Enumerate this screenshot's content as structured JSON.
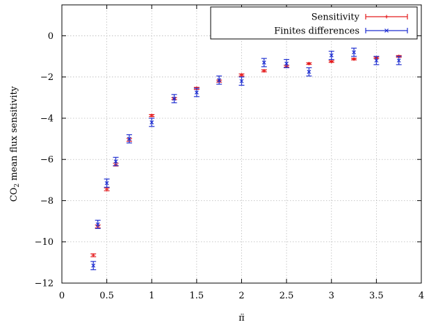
{
  "chart_data": {
    "type": "scatter",
    "xlabel": "π̈",
    "ylabel_main": "CO",
    "ylabel_sub": "2",
    "ylabel_rest": " mean flux sensitivity",
    "xlim": [
      0,
      4
    ],
    "ylim": [
      -12,
      1.5
    ],
    "x_ticks": [
      0,
      0.5,
      1,
      1.5,
      2,
      2.5,
      3,
      3.5,
      4
    ],
    "x_tick_labels": [
      "0",
      "0.5",
      "1",
      "1.5",
      "2",
      "2.5",
      "3",
      "3.5",
      "4"
    ],
    "y_ticks": [
      0,
      -2,
      -4,
      -6,
      -8,
      -10,
      -12
    ],
    "y_tick_labels": [
      "0",
      "−2",
      "−4",
      "−6",
      "−8",
      "−10",
      "−12"
    ],
    "grid": true,
    "legend_position": "top-right",
    "series": [
      {
        "name": "Sensitivity",
        "color": "#e41a1c",
        "marker": "plus",
        "points": [
          {
            "x": 0.35,
            "y": -10.65,
            "err": 0.07
          },
          {
            "x": 0.4,
            "y": -9.25,
            "err": 0.07
          },
          {
            "x": 0.5,
            "y": -7.45,
            "err": 0.07
          },
          {
            "x": 0.6,
            "y": -6.25,
            "err": 0.07
          },
          {
            "x": 0.75,
            "y": -5.05,
            "err": 0.07
          },
          {
            "x": 1.0,
            "y": -3.87,
            "err": 0.05
          },
          {
            "x": 1.25,
            "y": -3.05,
            "err": 0.05
          },
          {
            "x": 1.5,
            "y": -2.55,
            "err": 0.05
          },
          {
            "x": 1.75,
            "y": -2.2,
            "err": 0.05
          },
          {
            "x": 2.0,
            "y": -1.9,
            "err": 0.05
          },
          {
            "x": 2.25,
            "y": -1.7,
            "err": 0.05
          },
          {
            "x": 2.5,
            "y": -1.48,
            "err": 0.05
          },
          {
            "x": 2.75,
            "y": -1.35,
            "err": 0.04
          },
          {
            "x": 3.0,
            "y": -1.25,
            "err": 0.04
          },
          {
            "x": 3.25,
            "y": -1.13,
            "err": 0.04
          },
          {
            "x": 3.5,
            "y": -1.07,
            "err": 0.04
          },
          {
            "x": 3.75,
            "y": -1.0,
            "err": 0.04
          }
        ]
      },
      {
        "name": "Finites differences",
        "color": "#1f2fd0",
        "marker": "cross",
        "points": [
          {
            "x": 0.35,
            "y": -11.15,
            "err": 0.2
          },
          {
            "x": 0.4,
            "y": -9.15,
            "err": 0.2
          },
          {
            "x": 0.5,
            "y": -7.15,
            "err": 0.2
          },
          {
            "x": 0.6,
            "y": -6.1,
            "err": 0.2
          },
          {
            "x": 0.75,
            "y": -5.0,
            "err": 0.2
          },
          {
            "x": 1.0,
            "y": -4.2,
            "err": 0.2
          },
          {
            "x": 1.25,
            "y": -3.05,
            "err": 0.2
          },
          {
            "x": 1.5,
            "y": -2.75,
            "err": 0.2
          },
          {
            "x": 1.75,
            "y": -2.15,
            "err": 0.2
          },
          {
            "x": 2.0,
            "y": -2.2,
            "err": 0.2
          },
          {
            "x": 2.25,
            "y": -1.3,
            "err": 0.2
          },
          {
            "x": 2.5,
            "y": -1.35,
            "err": 0.2
          },
          {
            "x": 2.75,
            "y": -1.75,
            "err": 0.2
          },
          {
            "x": 3.0,
            "y": -0.95,
            "err": 0.2
          },
          {
            "x": 3.25,
            "y": -0.8,
            "err": 0.2
          },
          {
            "x": 3.5,
            "y": -1.2,
            "err": 0.2
          },
          {
            "x": 3.75,
            "y": -1.2,
            "err": 0.2
          }
        ]
      }
    ]
  }
}
